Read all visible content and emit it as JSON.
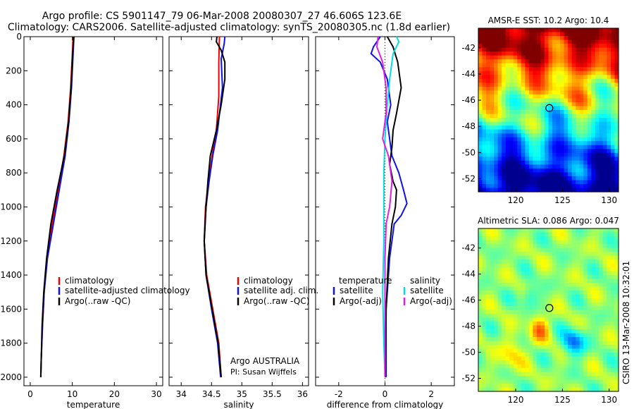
{
  "title_line1": "Argo profile: CS 5901147_79 06-Mar-2008 20080307_27 46.606S 123.6E",
  "title_line2": "Climatology: CARS2006. Satellite-adjusted climatology: synTS_20080305.nc (1.8d earlier)",
  "side_credit": "CSIRO 13-Mar-2008 10:32:01",
  "colors": {
    "red": "#ee0000",
    "blue": "#1010ee",
    "black": "#000000",
    "cyan": "#00e0e0",
    "magenta": "#e020e0"
  },
  "chart_data": [
    {
      "type": "line",
      "xlabel": "temperature",
      "xlim": [
        -1.5,
        31.5
      ],
      "ylim": [
        0,
        2050
      ],
      "xticks": [
        "0",
        "10",
        "20",
        "30"
      ],
      "yticks": [
        "0",
        "200",
        "400",
        "600",
        "800",
        "1000",
        "1200",
        "1400",
        "1600",
        "1800",
        "2000"
      ],
      "legend": [
        "climatology",
        "satellite-adjusted climatology",
        "Argo(..raw -QC)"
      ],
      "series": [
        {
          "name": "climatology",
          "color": "red",
          "points": [
            [
              10.2,
              0
            ],
            [
              10.0,
              100
            ],
            [
              9.6,
              300
            ],
            [
              9.0,
              500
            ],
            [
              8.0,
              700
            ],
            [
              6.6,
              900
            ],
            [
              5.2,
              1100
            ],
            [
              4.0,
              1300
            ],
            [
              3.3,
              1500
            ],
            [
              2.9,
              1700
            ],
            [
              2.6,
              1900
            ],
            [
              2.5,
              2000
            ]
          ]
        },
        {
          "name": "satellite-adjusted climatology",
          "color": "blue",
          "points": [
            [
              10.4,
              0
            ],
            [
              10.2,
              100
            ],
            [
              9.8,
              300
            ],
            [
              9.2,
              500
            ],
            [
              8.3,
              700
            ],
            [
              6.9,
              900
            ],
            [
              5.5,
              1100
            ],
            [
              4.1,
              1300
            ],
            [
              3.3,
              1500
            ],
            [
              2.9,
              1700
            ],
            [
              2.6,
              1900
            ],
            [
              2.5,
              2000
            ]
          ]
        },
        {
          "name": "Argo(..raw -QC)",
          "color": "black",
          "points": [
            [
              10.3,
              0
            ],
            [
              10.1,
              100
            ],
            [
              9.7,
              300
            ],
            [
              9.1,
              500
            ],
            [
              8.1,
              700
            ],
            [
              6.4,
              900
            ],
            [
              4.9,
              1100
            ],
            [
              3.9,
              1300
            ],
            [
              3.2,
              1500
            ],
            [
              2.8,
              1700
            ],
            [
              2.6,
              1900
            ],
            [
              2.5,
              2000
            ]
          ]
        }
      ]
    },
    {
      "type": "line",
      "xlabel": "salinity",
      "xlim": [
        33.8,
        36.1
      ],
      "ylim": [
        0,
        2050
      ],
      "xticks": [
        "34",
        "34.5",
        "35",
        "35.5",
        "36"
      ],
      "legend": [
        "climatology",
        "satellite adj. clim.",
        "Argo(..raw -QC)"
      ],
      "annotation": [
        "Argo AUSTRALIA",
        "PI: Susan Wijffels"
      ],
      "series": [
        {
          "name": "climatology",
          "color": "red",
          "points": [
            [
              34.63,
              0
            ],
            [
              34.62,
              150
            ],
            [
              34.62,
              350
            ],
            [
              34.58,
              550
            ],
            [
              34.51,
              700
            ],
            [
              34.45,
              850
            ],
            [
              34.4,
              1000
            ],
            [
              34.38,
              1200
            ],
            [
              34.42,
              1400
            ],
            [
              34.52,
              1600
            ],
            [
              34.62,
              1800
            ],
            [
              34.66,
              2000
            ]
          ]
        },
        {
          "name": "satellite adj. clim.",
          "color": "blue",
          "points": [
            [
              34.72,
              0
            ],
            [
              34.71,
              40
            ],
            [
              34.66,
              130
            ],
            [
              34.68,
              300
            ],
            [
              34.6,
              550
            ],
            [
              34.52,
              700
            ],
            [
              34.46,
              850
            ],
            [
              34.41,
              1000
            ],
            [
              34.38,
              1200
            ],
            [
              34.41,
              1400
            ],
            [
              34.5,
              1600
            ],
            [
              34.6,
              1800
            ],
            [
              34.65,
              2000
            ]
          ]
        },
        {
          "name": "Argo(..raw -QC)",
          "color": "black",
          "points": [
            [
              34.59,
              0
            ],
            [
              34.58,
              30
            ],
            [
              34.66,
              80
            ],
            [
              34.72,
              150
            ],
            [
              34.72,
              250
            ],
            [
              34.66,
              400
            ],
            [
              34.58,
              550
            ],
            [
              34.48,
              700
            ],
            [
              34.44,
              850
            ],
            [
              34.41,
              1000
            ],
            [
              34.38,
              1200
            ],
            [
              34.41,
              1400
            ],
            [
              34.51,
              1600
            ],
            [
              34.61,
              1800
            ],
            [
              34.66,
              2000
            ]
          ]
        }
      ]
    },
    {
      "type": "line",
      "xlabel": "difference from climatology",
      "xlim": [
        -3,
        3
      ],
      "ylim": [
        0,
        2050
      ],
      "xticks": [
        "-2",
        "0",
        "2"
      ],
      "legend": [
        "temperature",
        "satellite",
        "Argo(-adj)",
        "salinity",
        "satellite",
        "Argo(-adj)"
      ],
      "series": [
        {
          "name": "temperature satellite",
          "color": "blue",
          "points": [
            [
              -0.2,
              0
            ],
            [
              -0.5,
              60
            ],
            [
              -0.6,
              100
            ],
            [
              -0.2,
              150
            ],
            [
              0.1,
              250
            ],
            [
              0.25,
              400
            ],
            [
              0.1,
              500
            ],
            [
              0.2,
              600
            ],
            [
              0.3,
              700
            ],
            [
              0.6,
              800
            ],
            [
              0.8,
              900
            ],
            [
              0.95,
              980
            ],
            [
              0.7,
              1050
            ],
            [
              0.4,
              1100
            ],
            [
              0.2,
              1300
            ],
            [
              0.05,
              1600
            ],
            [
              0.05,
              2000
            ]
          ]
        },
        {
          "name": "temperature Argo(-adj)",
          "color": "black",
          "points": [
            [
              0.1,
              0
            ],
            [
              0.35,
              60
            ],
            [
              0.55,
              150
            ],
            [
              0.7,
              300
            ],
            [
              0.5,
              450
            ],
            [
              0.35,
              550
            ],
            [
              0.3,
              650
            ],
            [
              0.2,
              750
            ],
            [
              0.35,
              850
            ],
            [
              0.5,
              900
            ],
            [
              0.45,
              1000
            ],
            [
              0.3,
              1100
            ],
            [
              0.15,
              1300
            ],
            [
              0.05,
              1600
            ],
            [
              0.02,
              2000
            ]
          ]
        },
        {
          "name": "salinity satellite",
          "color": "cyan",
          "points": [
            [
              0.5,
              0
            ],
            [
              0.6,
              30
            ],
            [
              0.35,
              100
            ],
            [
              0.2,
              250
            ],
            [
              0.1,
              400
            ],
            [
              0.0,
              600
            ],
            [
              -0.05,
              800
            ],
            [
              -0.05,
              1000
            ],
            [
              -0.05,
              1200
            ],
            [
              -0.1,
              1500
            ],
            [
              -0.05,
              1800
            ],
            [
              0.0,
              2000
            ]
          ]
        },
        {
          "name": "salinity Argo(-adj)",
          "color": "magenta",
          "points": [
            [
              -0.3,
              0
            ],
            [
              -0.35,
              60
            ],
            [
              -0.1,
              150
            ],
            [
              0.05,
              300
            ],
            [
              0.05,
              450
            ],
            [
              -0.1,
              600
            ],
            [
              0.15,
              700
            ],
            [
              0.3,
              850
            ],
            [
              0.2,
              1000
            ],
            [
              0.05,
              1100
            ],
            [
              0.0,
              1300
            ],
            [
              0.0,
              2000
            ]
          ]
        }
      ]
    },
    {
      "type": "heatmap",
      "title": "AMSR-E SST: 10.2 Argo: 10.4",
      "xticks": [
        "120",
        "125",
        "130"
      ],
      "yticks": [
        "-42",
        "-44",
        "-46",
        "-48",
        "-50",
        "-52"
      ],
      "xlim": [
        116,
        131
      ],
      "ylim": [
        -53,
        -40.5
      ],
      "marker": [
        123.6,
        -46.6
      ]
    },
    {
      "type": "heatmap",
      "title": "Altimetric SLA: 0.086 Argo: 0.047",
      "xticks": [
        "120",
        "125",
        "130"
      ],
      "yticks": [
        "-42",
        "-44",
        "-46",
        "-48",
        "-50",
        "-52"
      ],
      "xlim": [
        116,
        131
      ],
      "ylim": [
        -53,
        -40.5
      ],
      "marker": [
        123.6,
        -46.6
      ]
    }
  ]
}
